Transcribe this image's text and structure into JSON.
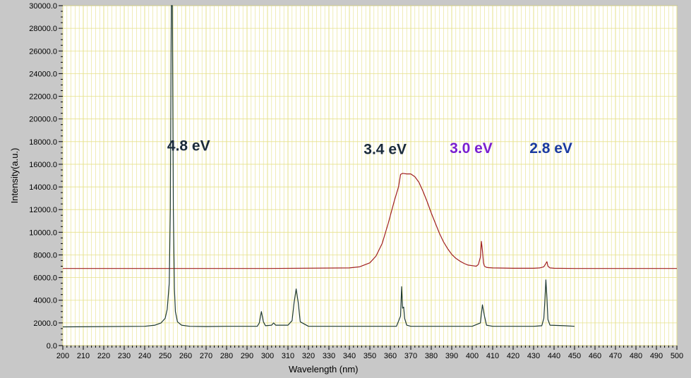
{
  "chart_data": {
    "type": "line",
    "title": "",
    "xlabel": "Wavelength (nm)",
    "ylabel": "Intensity(a.u.)",
    "xlim": [
      200,
      500
    ],
    "ylim": [
      0,
      30000
    ],
    "x_ticks": [
      200,
      210,
      220,
      230,
      240,
      250,
      260,
      270,
      280,
      290,
      300,
      310,
      320,
      330,
      340,
      350,
      360,
      370,
      380,
      390,
      400,
      410,
      420,
      430,
      440,
      450,
      460,
      470,
      480,
      490,
      500
    ],
    "y_ticks": [
      "0.0",
      "2000.0",
      "4000.0",
      "6000.0",
      "8000.0",
      "10000.0",
      "12000.0",
      "14000.0",
      "16000.0",
      "18000.0",
      "20000.0",
      "22000.0",
      "24000.0",
      "26000.0",
      "28000.0",
      "30000.0"
    ],
    "grid": true,
    "colors": {
      "plot_background": "#ffffff",
      "frame_background": "#c8c8c8",
      "grid": "#e6e08a",
      "annotation_dark": "#1a2a3a",
      "annotation_purple": "#7a1fd0",
      "annotation_blue": "#1a3aa0"
    },
    "series": [
      {
        "color": "#a02020",
        "x": [
          200,
          250,
          300,
          340,
          345,
          350,
          353,
          356,
          359,
          362,
          364,
          365,
          366,
          368,
          370,
          372,
          374,
          376,
          378,
          380,
          382,
          384,
          386,
          388,
          390,
          392,
          394,
          396,
          398,
          400,
          402,
          403,
          404,
          404.5,
          405,
          405.5,
          406,
          407,
          408,
          410,
          420,
          430,
          433,
          435,
          436,
          436.5,
          437,
          438,
          440,
          450,
          500
        ],
        "y": [
          6800,
          6800,
          6800,
          6850,
          6950,
          7300,
          7900,
          9000,
          10800,
          12800,
          14000,
          15100,
          15200,
          15150,
          15150,
          14900,
          14400,
          13600,
          12700,
          11700,
          10800,
          9900,
          9150,
          8550,
          8050,
          7700,
          7450,
          7250,
          7100,
          7050,
          7000,
          7150,
          7800,
          9200,
          8400,
          7300,
          7000,
          6900,
          6880,
          6850,
          6820,
          6820,
          6850,
          6950,
          7250,
          7400,
          7000,
          6850,
          6820,
          6800,
          6800
        ]
      },
      {
        "color": "#1f3a30",
        "x": [
          200,
          240,
          245,
          248,
          250,
          251,
          252,
          252.5,
          253,
          253.5,
          254,
          254.5,
          255,
          256,
          258,
          262,
          270,
          280,
          295,
          296,
          297,
          298,
          299,
          302,
          303,
          304,
          310,
          312,
          313,
          314,
          315,
          316,
          320,
          350,
          363,
          365,
          365.5,
          366,
          366.5,
          367,
          368,
          370,
          400,
          404,
          405,
          406,
          407,
          410,
          430,
          434,
          435,
          435.5,
          436,
          436.5,
          437,
          438,
          445,
          450
        ],
        "y": [
          1650,
          1700,
          1800,
          2000,
          2400,
          3200,
          5500,
          12000,
          30000,
          30000,
          12000,
          5000,
          3000,
          2100,
          1800,
          1700,
          1680,
          1700,
          1700,
          2000,
          3000,
          2100,
          1750,
          1800,
          2000,
          1800,
          1800,
          2200,
          3800,
          5000,
          3800,
          2100,
          1700,
          1700,
          1700,
          2600,
          5200,
          3300,
          3400,
          2400,
          1800,
          1700,
          1700,
          2000,
          3600,
          2600,
          1800,
          1700,
          1700,
          1750,
          2400,
          4000,
          5800,
          4200,
          2300,
          1800,
          1750,
          1700
        ]
      }
    ],
    "annotations": [
      {
        "text": "4.8 eV",
        "x": 251,
        "y": 17200,
        "color": "#1a2a3a"
      },
      {
        "text": "3.4 eV",
        "x": 347,
        "y": 16900,
        "color": "#1a2a3a"
      },
      {
        "text": "3.0 eV",
        "x": 389,
        "y": 17000,
        "color": "#7a1fd0"
      },
      {
        "text": "2.8 eV",
        "x": 428,
        "y": 17000,
        "color": "#1a3aa0"
      }
    ]
  }
}
